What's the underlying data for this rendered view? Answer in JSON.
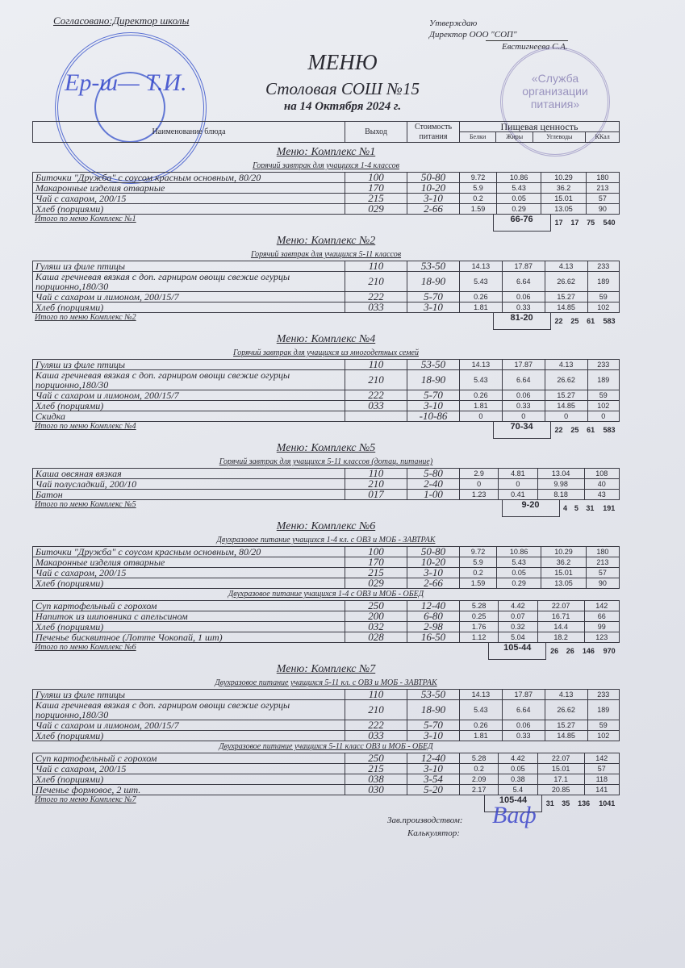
{
  "header": {
    "agreed": "Согласовано:Директор школы",
    "approved_line1": "Утверждаю",
    "approved_line2": "Директор ООО \"СОП\"",
    "approved_name": "Евстигнеева С.А.",
    "title": "МЕНЮ",
    "subtitle": "Столовая СОШ №15",
    "date": "на 14 Октября 2024 г.",
    "stamp_text": "«Служба организации питания»",
    "stamp_color": "#2846c8"
  },
  "columns": {
    "name": "Наименование блюда",
    "output": "Выход",
    "cost": "Стоимость питания",
    "nutrition": "Пищевая ценность",
    "protein": "Белки",
    "fat": "Жиры",
    "carbs": "Углеводы",
    "kcal": "ККал"
  },
  "sections": [
    {
      "title": "Меню: Комплекс №1",
      "blocks": [
        {
          "subtitle": "Горячий завтрак для учащихся 1-4 классов",
          "rows": [
            {
              "name": "Биточки  \"Дружба\" с соусом красным основным, 80/20",
              "output": "100",
              "cost": "50-80",
              "p": "9.72",
              "f": "10.86",
              "c": "10.29",
              "k": "180"
            },
            {
              "name": "Макаронные изделия отварные",
              "output": "170",
              "cost": "10-20",
              "p": "5.9",
              "f": "5.43",
              "c": "36.2",
              "k": "213"
            },
            {
              "name": "Чай с сахаром, 200/15",
              "output": "215",
              "cost": "3-10",
              "p": "0.2",
              "f": "0.05",
              "c": "15.01",
              "k": "57"
            },
            {
              "name": "Хлеб (порциями)",
              "output": "029",
              "cost": "2-66",
              "p": "1.59",
              "f": "0.29",
              "c": "13.05",
              "k": "90"
            }
          ]
        }
      ],
      "total": {
        "label": "Итого по меню Комплекс №1",
        "cost": "66-76",
        "p": "17",
        "f": "17",
        "c": "75",
        "k": "540"
      }
    },
    {
      "title": "Меню: Комплекс №2",
      "blocks": [
        {
          "subtitle": "Горячий завтрак для учащихся 5-11 классов",
          "rows": [
            {
              "name": "Гуляш из филе птицы",
              "output": "110",
              "cost": "53-50",
              "p": "14.13",
              "f": "17.87",
              "c": "4.13",
              "k": "233"
            },
            {
              "name": "Каша гречневая вязкая с доп. гарниром овощи свежие огурцы порционно,180/30",
              "output": "210",
              "cost": "18-90",
              "p": "5.43",
              "f": "6.64",
              "c": "26.62",
              "k": "189"
            },
            {
              "name": "Чай с сахаром и лимоном, 200/15/7",
              "output": "222",
              "cost": "5-70",
              "p": "0.26",
              "f": "0.06",
              "c": "15.27",
              "k": "59"
            },
            {
              "name": "Хлеб (порциями)",
              "output": "033",
              "cost": "3-10",
              "p": "1.81",
              "f": "0.33",
              "c": "14.85",
              "k": "102"
            }
          ]
        }
      ],
      "total": {
        "label": "Итого по меню Комплекс №2",
        "cost": "81-20",
        "p": "22",
        "f": "25",
        "c": "61",
        "k": "583"
      }
    },
    {
      "title": "Меню: Комплекс №4",
      "blocks": [
        {
          "subtitle": "Горячий завтрак для учащихся из многодетных семей",
          "rows": [
            {
              "name": "Гуляш из филе птицы",
              "output": "110",
              "cost": "53-50",
              "p": "14.13",
              "f": "17.87",
              "c": "4.13",
              "k": "233"
            },
            {
              "name": "Каша гречневая вязкая с доп. гарниром овощи свежие огурцы порционно,180/30",
              "output": "210",
              "cost": "18-90",
              "p": "5.43",
              "f": "6.64",
              "c": "26.62",
              "k": "189"
            },
            {
              "name": "Чай с сахаром и лимоном, 200/15/7",
              "output": "222",
              "cost": "5-70",
              "p": "0.26",
              "f": "0.06",
              "c": "15.27",
              "k": "59"
            },
            {
              "name": "Хлеб (порциями)",
              "output": "033",
              "cost": "3-10",
              "p": "1.81",
              "f": "0.33",
              "c": "14.85",
              "k": "102"
            },
            {
              "name": "Скидка",
              "output": "",
              "cost": "-10-86",
              "p": "0",
              "f": "0",
              "c": "0",
              "k": "0"
            }
          ]
        }
      ],
      "total": {
        "label": "Итого по меню Комплекс №4",
        "cost": "70-34",
        "p": "22",
        "f": "25",
        "c": "61",
        "k": "583"
      }
    },
    {
      "title": "Меню: Комплекс №5",
      "blocks": [
        {
          "subtitle": "Горячий завтрак для учащихся 5-11 классов (дотац. питание)",
          "rows": [
            {
              "name": "Каша овсяная вязкая",
              "output": "110",
              "cost": "5-80",
              "p": "2.9",
              "f": "4.81",
              "c": "13.04",
              "k": "108"
            },
            {
              "name": "Чай полусладкий, 200/10",
              "output": "210",
              "cost": "2-40",
              "p": "0",
              "f": "0",
              "c": "9.98",
              "k": "40"
            },
            {
              "name": "Батон",
              "output": "017",
              "cost": "1-00",
              "p": "1.23",
              "f": "0.41",
              "c": "8.18",
              "k": "43"
            }
          ]
        }
      ],
      "total": {
        "label": "Итого по меню Комплекс №5",
        "cost": "9-20",
        "p": "4",
        "f": "5",
        "c": "31",
        "k": "191"
      }
    },
    {
      "title": "Меню: Комплекс №6",
      "blocks": [
        {
          "subtitle": "Двухразовое питание учащихся 1-4 кл. с ОВЗ и МОБ - ЗАВТРАК",
          "rows": [
            {
              "name": "Биточки  \"Дружба\" с соусом красным основным, 80/20",
              "output": "100",
              "cost": "50-80",
              "p": "9.72",
              "f": "10.86",
              "c": "10.29",
              "k": "180"
            },
            {
              "name": "Макаронные изделия отварные",
              "output": "170",
              "cost": "10-20",
              "p": "5.9",
              "f": "5.43",
              "c": "36.2",
              "k": "213"
            },
            {
              "name": "Чай с сахаром, 200/15",
              "output": "215",
              "cost": "3-10",
              "p": "0.2",
              "f": "0.05",
              "c": "15.01",
              "k": "57"
            },
            {
              "name": "Хлеб (порциями)",
              "output": "029",
              "cost": "2-66",
              "p": "1.59",
              "f": "0.29",
              "c": "13.05",
              "k": "90"
            }
          ]
        },
        {
          "subtitle": "Двухразовое питание учащихся 1-4 с ОВЗ и МОБ - ОБЕД",
          "rows": [
            {
              "name": "Суп картофельный с горохом",
              "output": "250",
              "cost": "12-40",
              "p": "5.28",
              "f": "4.42",
              "c": "22.07",
              "k": "142"
            },
            {
              "name": "Напиток из шиповника с апельсином",
              "output": "200",
              "cost": "6-80",
              "p": "0.25",
              "f": "0.07",
              "c": "16.71",
              "k": "66"
            },
            {
              "name": "Хлеб (порциями)",
              "output": "032",
              "cost": "2-98",
              "p": "1.76",
              "f": "0.32",
              "c": "14.4",
              "k": "99"
            },
            {
              "name": "Печенье бисквитное (Лотте Чокопай, 1 шт)",
              "output": "028",
              "cost": "16-50",
              "p": "1.12",
              "f": "5.04",
              "c": "18.2",
              "k": "123"
            }
          ]
        }
      ],
      "total": {
        "label": "Итого по меню Комплекс №6",
        "cost": "105-44",
        "p": "26",
        "f": "26",
        "c": "146",
        "k": "970"
      }
    },
    {
      "title": "Меню: Комплекс №7",
      "blocks": [
        {
          "subtitle": "Двухразовое питание учащихся 5-11 кл. с  ОВЗ и МОБ - ЗАВТРАК",
          "rows": [
            {
              "name": "Гуляш из филе птицы",
              "output": "110",
              "cost": "53-50",
              "p": "14.13",
              "f": "17.87",
              "c": "4.13",
              "k": "233"
            },
            {
              "name": "Каша гречневая вязкая с доп. гарниром овощи свежие огурцы порционно,180/30",
              "output": "210",
              "cost": "18-90",
              "p": "5.43",
              "f": "6.64",
              "c": "26.62",
              "k": "189"
            },
            {
              "name": "Чай с сахаром и лимоном, 200/15/7",
              "output": "222",
              "cost": "5-70",
              "p": "0.26",
              "f": "0.06",
              "c": "15.27",
              "k": "59"
            },
            {
              "name": "Хлеб (порциями)",
              "output": "033",
              "cost": "3-10",
              "p": "1.81",
              "f": "0.33",
              "c": "14.85",
              "k": "102"
            }
          ]
        },
        {
          "subtitle": "Двухразовое питание учащихся 5-11 класс ОВЗ и МОБ - ОБЕД",
          "rows": [
            {
              "name": "Суп картофельный с горохом",
              "output": "250",
              "cost": "12-40",
              "p": "5.28",
              "f": "4.42",
              "c": "22.07",
              "k": "142"
            },
            {
              "name": "Чай с сахаром, 200/15",
              "output": "215",
              "cost": "3-10",
              "p": "0.2",
              "f": "0.05",
              "c": "15.01",
              "k": "57"
            },
            {
              "name": "Хлеб (порциями)",
              "output": "038",
              "cost": "3-54",
              "p": "2.09",
              "f": "0.38",
              "c": "17.1",
              "k": "118"
            },
            {
              "name": "Печенье формовое, 2 шт.",
              "output": "030",
              "cost": "5-20",
              "p": "2.17",
              "f": "5.4",
              "c": "20.85",
              "k": "141"
            }
          ]
        }
      ],
      "total": {
        "label": "Итого по меню Комплекс №7",
        "cost": "105-44",
        "p": "31",
        "f": "35",
        "c": "136",
        "k": "1041"
      }
    }
  ],
  "footer": {
    "production": "Зав.производством:",
    "calculator": "Калькулятор:"
  }
}
